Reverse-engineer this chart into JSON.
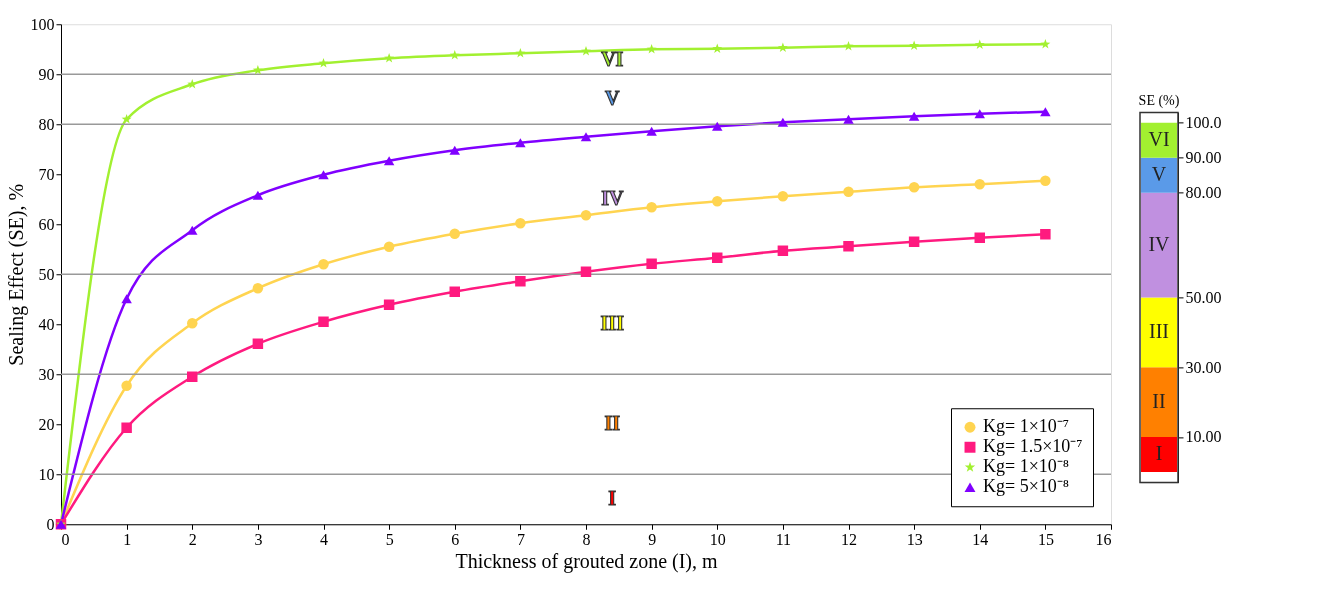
{
  "chart_data": [
    {
      "type": "line",
      "xlabel": "Thickness of grouted zone (I), m",
      "ylabel": "Sealing Effect (SE), %",
      "x": [
        0,
        1,
        2,
        3,
        4,
        5,
        6,
        7,
        8,
        9,
        10,
        11,
        12,
        13,
        14,
        15
      ],
      "series": [
        {
          "name": "Kg= 1×10⁻⁷",
          "color": "#ffd450",
          "marker": "circle",
          "values": [
            0,
            27.7,
            40.2,
            47.2,
            52,
            55.5,
            58.1,
            60.2,
            61.8,
            63.4,
            64.6,
            65.6,
            66.5,
            67.4,
            68,
            68.7
          ]
        },
        {
          "name": "Kg= 1.5×10⁻⁷",
          "color": "#ff1a7f",
          "marker": "square",
          "values": [
            0,
            19.3,
            29.5,
            36.1,
            40.5,
            43.9,
            46.5,
            48.6,
            50.5,
            52.1,
            53.3,
            54.7,
            55.6,
            56.5,
            57.3,
            58
          ]
        },
        {
          "name": "Kg= 1×10⁻⁸",
          "color": "#a2f030",
          "marker": "star",
          "values": [
            0,
            81,
            88,
            90.8,
            92.2,
            93.2,
            93.8,
            94.2,
            94.6,
            95,
            95.1,
            95.3,
            95.6,
            95.7,
            95.9,
            96
          ]
        },
        {
          "name": "Kg= 5×10⁻⁸",
          "color": "#8000ff",
          "marker": "triangle",
          "values": [
            0,
            45.1,
            58.8,
            65.8,
            69.9,
            72.7,
            74.8,
            76.3,
            77.5,
            78.6,
            79.6,
            80.4,
            81,
            81.6,
            82.1,
            82.5
          ]
        }
      ],
      "xlim": [
        0,
        16
      ],
      "xticks": [
        0,
        1,
        2,
        3,
        4,
        5,
        6,
        7,
        8,
        9,
        10,
        11,
        12,
        13,
        14,
        15,
        16
      ],
      "ylim": [
        0,
        100
      ],
      "yticks": [
        0,
        10,
        20,
        30,
        40,
        50,
        60,
        70,
        80,
        90,
        100
      ],
      "grid": false,
      "legend": "bottom right",
      "ref_lines": [
        {
          "axis": "y",
          "value": 10,
          "color": "#999999"
        },
        {
          "axis": "y",
          "value": 30,
          "color": "#999999"
        },
        {
          "axis": "y",
          "value": 50,
          "color": "#999999"
        },
        {
          "axis": "y",
          "value": 80,
          "color": "#999999"
        },
        {
          "axis": "y",
          "value": 90,
          "color": "#999999"
        }
      ],
      "annotations": [
        "I",
        "II",
        "III",
        "IV",
        "V",
        "VI"
      ]
    },
    {
      "type": "bar",
      "stacked": true,
      "title": "SE (%)",
      "categories": [
        null
      ],
      "series": [
        {
          "name": "I",
          "color": "#ff0000",
          "values": [
            10
          ]
        },
        {
          "name": "II",
          "color": "#ff8000",
          "values": [
            20
          ]
        },
        {
          "name": "III",
          "color": "#ffff00",
          "values": [
            20
          ]
        },
        {
          "name": "IV",
          "color": "#c090e0",
          "values": [
            30
          ]
        },
        {
          "name": "V",
          "color": "#5a9ae8",
          "values": [
            10
          ]
        },
        {
          "name": "VI",
          "color": "#a2f030",
          "values": [
            10
          ]
        }
      ],
      "ylim": [
        -3,
        103
      ],
      "yticks": [
        {
          "value": 10,
          "label": "10.00"
        },
        {
          "value": 30,
          "label": "30.00"
        },
        {
          "value": 50,
          "label": "50.00"
        },
        {
          "value": 80,
          "label": "80.00"
        },
        {
          "value": 90,
          "label": "90.00"
        },
        {
          "value": 100,
          "label": "100.0"
        }
      ],
      "tick_labels": "y",
      "grid": false
    }
  ]
}
